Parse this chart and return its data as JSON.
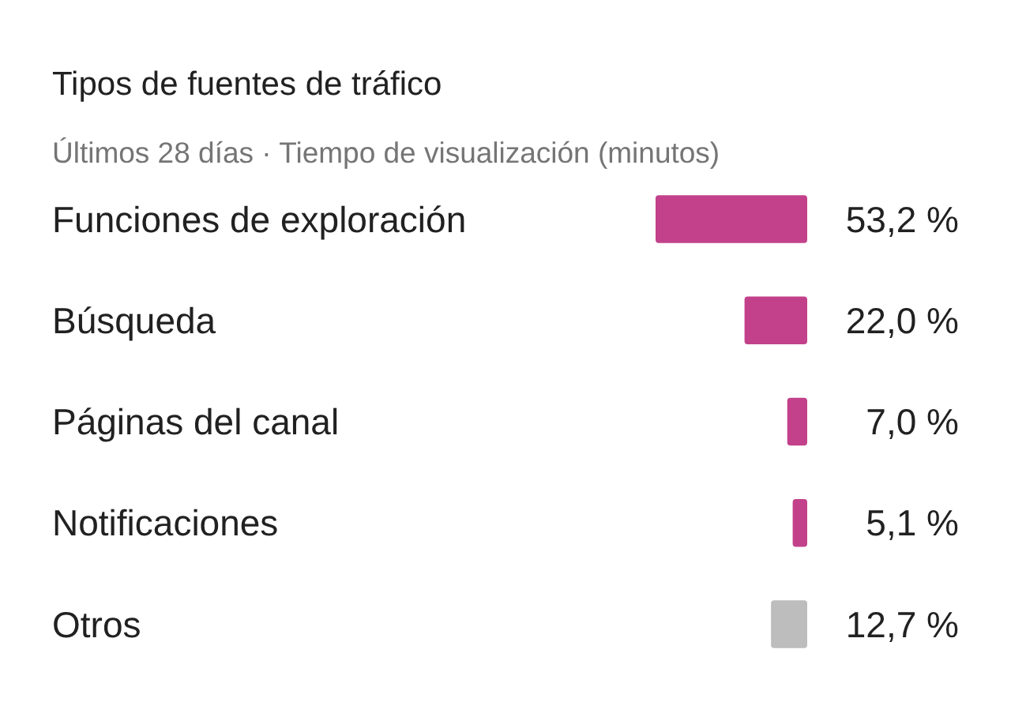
{
  "chart_data": {
    "type": "bar",
    "orientation": "horizontal",
    "title": "Tipos de fuentes de tráfico",
    "subtitle": "Últimos 28 días · Tiempo de visualización (minutos)",
    "categories": [
      "Funciones de exploración",
      "Búsqueda",
      "Páginas del canal",
      "Notificaciones",
      "Otros"
    ],
    "values": [
      53.2,
      22.0,
      7.0,
      5.1,
      12.7
    ],
    "colors": [
      "#c2418a",
      "#c2418a",
      "#c2418a",
      "#c2418a",
      "#bdbdbd"
    ],
    "value_labels": [
      "53,2 %",
      "22,0 %",
      "7,0 %",
      "5,1 %",
      "12,7 %"
    ]
  }
}
